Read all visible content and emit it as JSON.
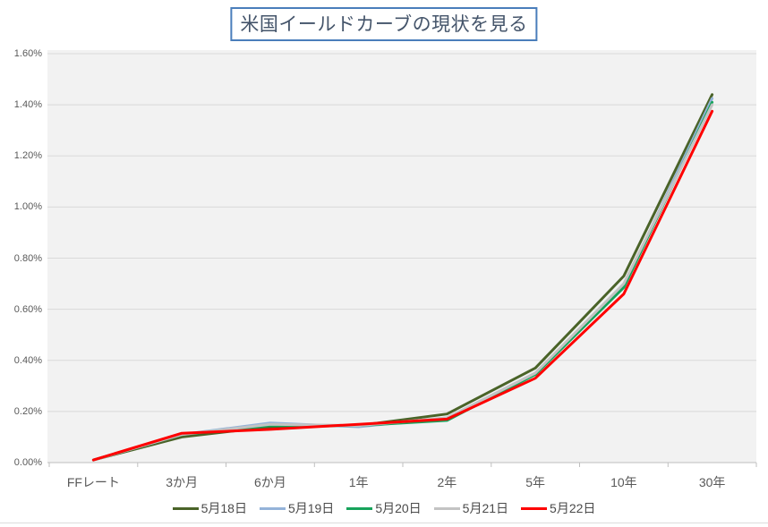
{
  "title": "米国イールドカーブの現状を見る",
  "colors": {
    "title_border": "#4a7ebb",
    "title_text": "#44546a",
    "plot_background": "#f2f2f2",
    "gridline": "#d9d9d9",
    "axis_line": "#bfbfbf",
    "axis_text": "#595959"
  },
  "chart_data": {
    "type": "line",
    "title": "米国イールドカーブの現状を見る",
    "xlabel": "",
    "ylabel": "",
    "categories": [
      "FFレート",
      "3か月",
      "6か月",
      "1年",
      "2年",
      "5年",
      "10年",
      "30年"
    ],
    "series": [
      {
        "name": "5月18日",
        "color": "#4a6328",
        "values": [
          0.01,
          0.1,
          0.14,
          0.145,
          0.19,
          0.37,
          0.73,
          1.44
        ]
      },
      {
        "name": "5月19日",
        "color": "#94b3d9",
        "values": [
          0.01,
          0.11,
          0.155,
          0.14,
          0.175,
          0.35,
          0.69,
          1.425
        ]
      },
      {
        "name": "5月20日",
        "color": "#17a35b",
        "values": [
          0.01,
          0.11,
          0.145,
          0.145,
          0.165,
          0.345,
          0.685,
          1.41
        ]
      },
      {
        "name": "5月21日",
        "color": "#c3c3c3",
        "values": [
          0.01,
          0.11,
          0.15,
          0.145,
          0.175,
          0.35,
          0.7,
          1.4
        ]
      },
      {
        "name": "5月22日",
        "color": "#fe0000",
        "values": [
          0.01,
          0.115,
          0.13,
          0.15,
          0.17,
          0.33,
          0.66,
          1.375
        ]
      }
    ],
    "y_ticks": [
      "0.00%",
      "0.20%",
      "0.40%",
      "0.60%",
      "0.80%",
      "1.00%",
      "1.20%",
      "1.40%",
      "1.60%"
    ],
    "ylim": [
      0,
      1.6
    ],
    "grid": true,
    "legend_position": "bottom"
  }
}
